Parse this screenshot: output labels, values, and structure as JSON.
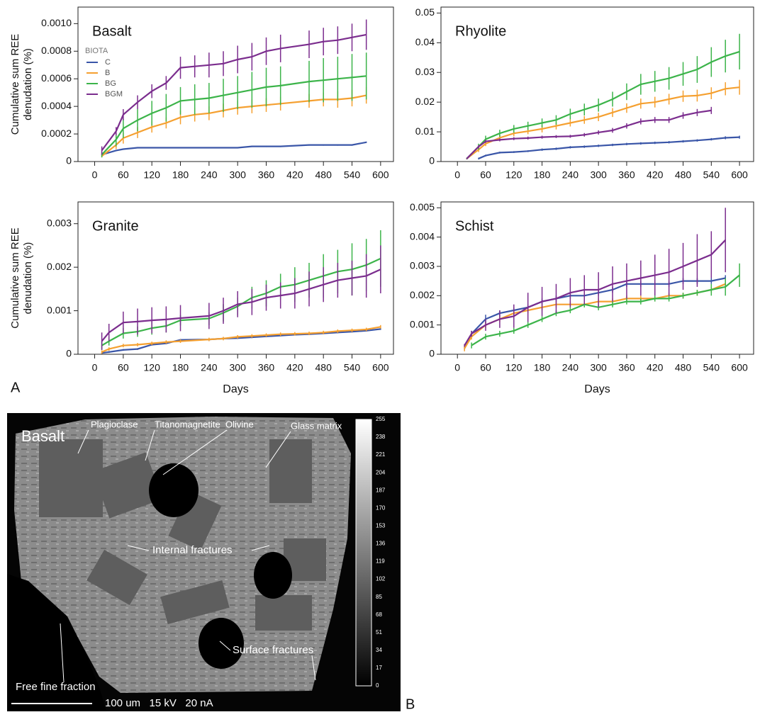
{
  "chart_data": [
    {
      "type": "line",
      "title": "Basalt",
      "ylabel": [
        "Cumulative sum REE",
        "denudation (%)"
      ],
      "legend": "upper left",
      "legend_title": "BIOTA",
      "x": [
        15,
        45,
        60,
        90,
        120,
        150,
        180,
        210,
        240,
        270,
        300,
        330,
        360,
        390,
        450,
        480,
        510,
        540,
        570
      ],
      "xlim": [
        -35,
        627
      ],
      "xticks": [
        0,
        60,
        120,
        180,
        240,
        300,
        360,
        420,
        480,
        540,
        600
      ],
      "ylim": [
        0,
        0.00112
      ],
      "yticks": [
        0,
        0.0002,
        0.0004,
        0.0006,
        0.0008,
        {
          "value": 0.001,
          "label": "0.0010"
        }
      ],
      "series": [
        {
          "name": "C",
          "color": "#3a56a8",
          "values": [
            5e-05,
            8e-05,
            9e-05,
            0.0001,
            0.0001,
            0.0001,
            0.0001,
            0.0001,
            0.0001,
            0.0001,
            0.0001,
            0.00011,
            0.00011,
            0.00011,
            0.00012,
            0.00012,
            0.00012,
            0.00012,
            0.00014
          ],
          "errors": [
            5e-06,
            5e-06,
            5e-06,
            5e-06,
            5e-06,
            5e-06,
            5e-06,
            5e-06,
            5e-06,
            5e-06,
            5e-06,
            5e-06,
            5e-06,
            5e-06,
            5e-06,
            5e-06,
            5e-06,
            5e-06,
            5e-06
          ]
        },
        {
          "name": "B",
          "color": "#f5a030",
          "values": [
            4e-05,
            0.00012,
            0.00017,
            0.00021,
            0.00025,
            0.00028,
            0.00032,
            0.00034,
            0.00035,
            0.00037,
            0.00039,
            0.0004,
            0.00041,
            0.00042,
            0.00044,
            0.00045,
            0.00045,
            0.00046,
            0.00048
          ],
          "errors": [
            1e-05,
            3e-05,
            4e-05,
            4e-05,
            4e-05,
            4e-05,
            5e-05,
            5e-05,
            5e-05,
            5e-05,
            5e-05,
            5e-05,
            5e-05,
            5e-05,
            5e-05,
            5e-05,
            6e-05,
            6e-05,
            6e-05
          ]
        },
        {
          "name": "BG",
          "color": "#3cb44a",
          "values": [
            5e-05,
            0.00016,
            0.00024,
            0.0003,
            0.00035,
            0.00039,
            0.00044,
            0.00045,
            0.00046,
            0.00048,
            0.0005,
            0.00052,
            0.00054,
            0.00055,
            0.00058,
            0.00059,
            0.0006,
            0.00061,
            0.00062
          ],
          "errors": [
            2e-05,
            5e-05,
            7e-05,
            8e-05,
            9e-05,
            0.0001,
            0.0001,
            0.00011,
            0.00011,
            0.00012,
            0.00012,
            0.00013,
            0.00014,
            0.00014,
            0.00015,
            0.00016,
            0.00016,
            0.00017,
            0.00017
          ]
        },
        {
          "name": "BGM",
          "color": "#7b2d8e",
          "values": [
            8e-05,
            0.00022,
            0.00034,
            0.00043,
            0.00051,
            0.00057,
            0.00068,
            0.00069,
            0.0007,
            0.00071,
            0.00074,
            0.00076,
            0.0008,
            0.00082,
            0.00085,
            0.00087,
            0.00088,
            0.0009,
            0.00092
          ],
          "errors": [
            3e-05,
            3e-05,
            4e-05,
            5e-05,
            5e-05,
            5e-05,
            8e-05,
            8e-05,
            9e-05,
            9e-05,
            0.0001,
            0.0001,
            0.0001,
            0.0001,
            0.0001,
            0.0001,
            0.0001,
            0.0001,
            0.00011
          ]
        }
      ]
    },
    {
      "type": "line",
      "title": "Rhyolite",
      "x": [
        20,
        45,
        60,
        90,
        120,
        150,
        180,
        210,
        240,
        270,
        300,
        330,
        360,
        390,
        420,
        450,
        480,
        510,
        540,
        570,
        600
      ],
      "xlim": [
        -35,
        630
      ],
      "xticks": [
        0,
        60,
        120,
        180,
        240,
        300,
        360,
        420,
        480,
        540,
        600
      ],
      "ylim": [
        0,
        0.052
      ],
      "yticks": [
        0,
        0.01,
        0.02,
        0.03,
        0.04,
        0.05
      ],
      "series": [
        {
          "color": "#3a56a8",
          "values": [
            null,
            0.001,
            0.002,
            0.003,
            0.0032,
            0.0035,
            0.004,
            0.0043,
            0.0048,
            0.005,
            0.0053,
            0.0056,
            0.0059,
            0.0061,
            0.0063,
            0.0065,
            0.0068,
            0.0071,
            0.0075,
            0.008,
            0.0082
          ],
          "errors": [
            null,
            0.0003,
            0.0003,
            0.0003,
            0.0003,
            0.0003,
            0.0004,
            0.0004,
            0.0004,
            0.0004,
            0.0004,
            0.0004,
            0.0004,
            0.0004,
            0.0004,
            0.0004,
            0.0004,
            0.0004,
            0.0004,
            0.0005,
            0.0005
          ]
        },
        {
          "color": "#f5a030",
          "values": [
            0.001,
            0.004,
            0.006,
            0.008,
            0.0095,
            0.0102,
            0.011,
            0.012,
            0.013,
            0.014,
            0.015,
            0.0165,
            0.018,
            0.0195,
            0.02,
            0.021,
            0.022,
            0.0222,
            0.023,
            0.0245,
            0.025
          ],
          "errors": [
            0.0003,
            0.0008,
            0.0008,
            0.001,
            0.001,
            0.001,
            0.0012,
            0.0012,
            0.0012,
            0.0013,
            0.0014,
            0.0015,
            0.0016,
            0.0017,
            0.0018,
            0.0018,
            0.0019,
            0.002,
            0.002,
            0.0022,
            0.0025
          ]
        },
        {
          "color": "#3cb44a",
          "values": [
            0.001,
            0.005,
            0.0075,
            0.0095,
            0.011,
            0.012,
            0.013,
            0.014,
            0.016,
            0.0175,
            0.019,
            0.021,
            0.0235,
            0.026,
            0.027,
            0.028,
            0.0295,
            0.031,
            0.0335,
            0.0355,
            0.037
          ],
          "errors": [
            0.0003,
            0.001,
            0.0012,
            0.0012,
            0.0013,
            0.0014,
            0.0015,
            0.0016,
            0.0018,
            0.002,
            0.0022,
            0.0025,
            0.0028,
            0.0035,
            0.0035,
            0.0038,
            0.004,
            0.0045,
            0.005,
            0.0055,
            0.006
          ]
        },
        {
          "color": "#7b2d8e",
          "values": [
            0.001,
            0.005,
            0.0068,
            0.0073,
            0.0077,
            0.0079,
            0.0082,
            0.0084,
            0.0085,
            0.009,
            0.0098,
            0.0105,
            0.012,
            0.0135,
            0.014,
            0.014,
            0.0155,
            0.0165,
            0.0172,
            null,
            null
          ],
          "errors": [
            0.0002,
            0.0005,
            0.0005,
            0.0005,
            0.0005,
            0.0005,
            0.0005,
            0.0005,
            0.0005,
            0.0006,
            0.0007,
            0.0008,
            0.0009,
            0.001,
            0.001,
            0.001,
            0.0011,
            0.0012,
            0.0012,
            null,
            null
          ]
        }
      ]
    },
    {
      "type": "line",
      "title": "Granite",
      "ylabel": [
        "Cumulative sum REE",
        "denudation (%)"
      ],
      "xlabel": "Days",
      "x": [
        15,
        30,
        60,
        90,
        120,
        150,
        180,
        240,
        270,
        300,
        330,
        360,
        390,
        420,
        450,
        480,
        510,
        540,
        570,
        600
      ],
      "xlim": [
        -35,
        627
      ],
      "xticks": [
        0,
        60,
        120,
        180,
        240,
        300,
        360,
        420,
        480,
        540,
        600
      ],
      "ylim": [
        0,
        0.0035
      ],
      "yticks": [
        0,
        0.001,
        0.002,
        0.003
      ],
      "series": [
        {
          "color": "#3a56a8",
          "values": [
            3e-05,
            5e-05,
            0.0001,
            0.00012,
            0.00022,
            0.00025,
            0.00033,
            0.00034,
            0.00036,
            0.00037,
            0.00039,
            0.00041,
            0.00043,
            0.00045,
            0.00046,
            0.00048,
            0.0005,
            0.00052,
            0.00054,
            0.00058
          ],
          "errors": [
            2e-05,
            2e-05,
            2e-05,
            2e-05,
            2e-05,
            2e-05,
            2e-05,
            2e-05,
            2e-05,
            2e-05,
            2e-05,
            2e-05,
            2e-05,
            2e-05,
            2e-05,
            2e-05,
            2e-05,
            2e-05,
            2e-05,
            2e-05
          ]
        },
        {
          "color": "#f5a030",
          "values": [
            5e-05,
            0.00012,
            0.0002,
            0.00022,
            0.00025,
            0.00028,
            0.0003,
            0.00034,
            0.00036,
            0.0004,
            0.00042,
            0.00044,
            0.00046,
            0.00047,
            0.00048,
            0.0005,
            0.00053,
            0.00055,
            0.00057,
            0.00063
          ],
          "errors": [
            4e-05,
            4e-05,
            4e-05,
            4e-05,
            4e-05,
            4e-05,
            4e-05,
            4e-05,
            4e-05,
            4e-05,
            4e-05,
            4e-05,
            4e-05,
            4e-05,
            4e-05,
            4e-05,
            4e-05,
            4e-05,
            4e-05,
            4e-05
          ]
        },
        {
          "color": "#3cb44a",
          "values": [
            0.0002,
            0.0003,
            0.00048,
            0.00052,
            0.0006,
            0.00065,
            0.00078,
            0.00082,
            0.00095,
            0.0011,
            0.0013,
            0.0014,
            0.00155,
            0.0016,
            0.0017,
            0.0018,
            0.0019,
            0.00195,
            0.00205,
            0.0022
          ],
          "errors": [
            0.0001,
            0.0001,
            0.00012,
            0.00012,
            0.00015,
            0.00015,
            0.00012,
            0.00015,
            0.0002,
            0.0002,
            0.00025,
            0.0003,
            0.0003,
            0.0004,
            0.0004,
            0.0005,
            0.0005,
            0.0006,
            0.0006,
            0.00065
          ]
        },
        {
          "color": "#7b2d8e",
          "values": [
            0.0003,
            0.0005,
            0.00073,
            0.00075,
            0.00078,
            0.0008,
            0.00083,
            0.00088,
            0.001,
            0.00115,
            0.0012,
            0.0013,
            0.00135,
            0.0014,
            0.0015,
            0.0016,
            0.0017,
            0.00175,
            0.0018,
            0.00195
          ],
          "errors": [
            0.0002,
            0.0002,
            0.00025,
            0.0003,
            0.0003,
            0.0003,
            0.0003,
            0.0003,
            0.0003,
            0.0003,
            0.0003,
            0.0003,
            0.0003,
            0.00035,
            0.0004,
            0.0004,
            0.0004,
            0.0004,
            0.0005,
            0.00055
          ]
        }
      ]
    },
    {
      "type": "line",
      "title": "Schist",
      "xlabel": "Days",
      "x": [
        15,
        30,
        60,
        90,
        120,
        150,
        180,
        210,
        240,
        270,
        300,
        330,
        360,
        390,
        420,
        450,
        480,
        510,
        540,
        570,
        600
      ],
      "xlim": [
        -35,
        630
      ],
      "xticks": [
        0,
        60,
        120,
        180,
        240,
        300,
        360,
        420,
        480,
        540,
        600
      ],
      "ylim": [
        0,
        0.0052
      ],
      "yticks": [
        0,
        0.001,
        0.002,
        0.003,
        0.004,
        0.005
      ],
      "series": [
        {
          "color": "#3a56a8",
          "values": [
            0.0002,
            0.0007,
            0.0012,
            0.0014,
            0.0015,
            0.0016,
            0.0018,
            0.0019,
            0.002,
            0.002,
            0.0021,
            0.0022,
            0.0024,
            0.0024,
            0.0024,
            0.0024,
            0.0025,
            0.0025,
            0.0025,
            0.0026,
            null
          ],
          "errors": [
            5e-05,
            0.0001,
            0.00015,
            0.0001,
            0.0001,
            0.0001,
            0.0001,
            0.0001,
            0.0001,
            0.0001,
            0.0001,
            0.0001,
            0.0001,
            0.0001,
            0.0001,
            0.0001,
            0.0001,
            0.0001,
            0.0001,
            0.0001,
            null
          ]
        },
        {
          "color": "#f5a030",
          "values": [
            0.0002,
            0.0006,
            0.001,
            0.0012,
            0.0014,
            0.0015,
            0.0016,
            0.0017,
            0.0017,
            0.0017,
            0.0018,
            0.0018,
            0.0019,
            0.0019,
            0.0019,
            0.002,
            0.002,
            0.0021,
            0.0022,
            0.0024,
            null
          ],
          "errors": [
            0.0001,
            0.0001,
            0.0001,
            0.0001,
            0.0001,
            0.0001,
            0.0001,
            0.0001,
            0.0001,
            0.0001,
            0.0001,
            0.0001,
            0.0001,
            0.0001,
            0.0001,
            0.0001,
            0.0001,
            0.0001,
            0.0001,
            0.0001,
            null
          ]
        },
        {
          "color": "#3cb44a",
          "values": [
            null,
            0.0003,
            0.0006,
            0.0007,
            0.0008,
            0.001,
            0.0012,
            0.0014,
            0.0015,
            0.0017,
            0.0016,
            0.0017,
            0.0018,
            0.0018,
            0.0019,
            0.0019,
            0.002,
            0.0021,
            0.0022,
            0.0023,
            0.0027
          ],
          "errors": [
            null,
            0.0001,
            0.0001,
            0.0001,
            0.0001,
            0.0001,
            0.0001,
            0.0001,
            0.0001,
            0.0001,
            0.0001,
            0.0001,
            0.0001,
            0.0001,
            0.0001,
            0.0001,
            0.0001,
            0.0001,
            0.0002,
            0.0003,
            0.0004
          ]
        },
        {
          "color": "#7b2d8e",
          "values": [
            0.0003,
            0.0007,
            0.001,
            0.0012,
            0.0013,
            0.0016,
            0.0018,
            0.0019,
            0.0021,
            0.0022,
            0.0022,
            0.0024,
            0.0025,
            0.0026,
            0.0027,
            0.0028,
            0.003,
            0.0032,
            0.0034,
            0.0039,
            null
          ],
          "errors": [
            5e-05,
            0.0001,
            0.0002,
            0.0003,
            0.0004,
            0.0005,
            0.0005,
            0.0005,
            0.0005,
            0.0005,
            0.0006,
            0.0006,
            0.0006,
            0.0006,
            0.0007,
            0.0008,
            0.0008,
            0.0009,
            0.0008,
            0.0011,
            null
          ]
        }
      ]
    }
  ],
  "panel_labels": [
    "A",
    "B"
  ],
  "image": {
    "title": "Basalt",
    "annotations": [
      "Plagioclase",
      "Titanomagnetite",
      "Olivine",
      "Glass matrix",
      "Internal fractures",
      "Surface fractures",
      "Free fine fraction"
    ],
    "scale_text": "100 um   15 kV   20 nA",
    "colorbar_ticks": [
      255,
      238,
      221,
      204,
      187,
      170,
      153,
      136,
      119,
      102,
      85,
      68,
      51,
      34,
      17,
      0
    ]
  }
}
